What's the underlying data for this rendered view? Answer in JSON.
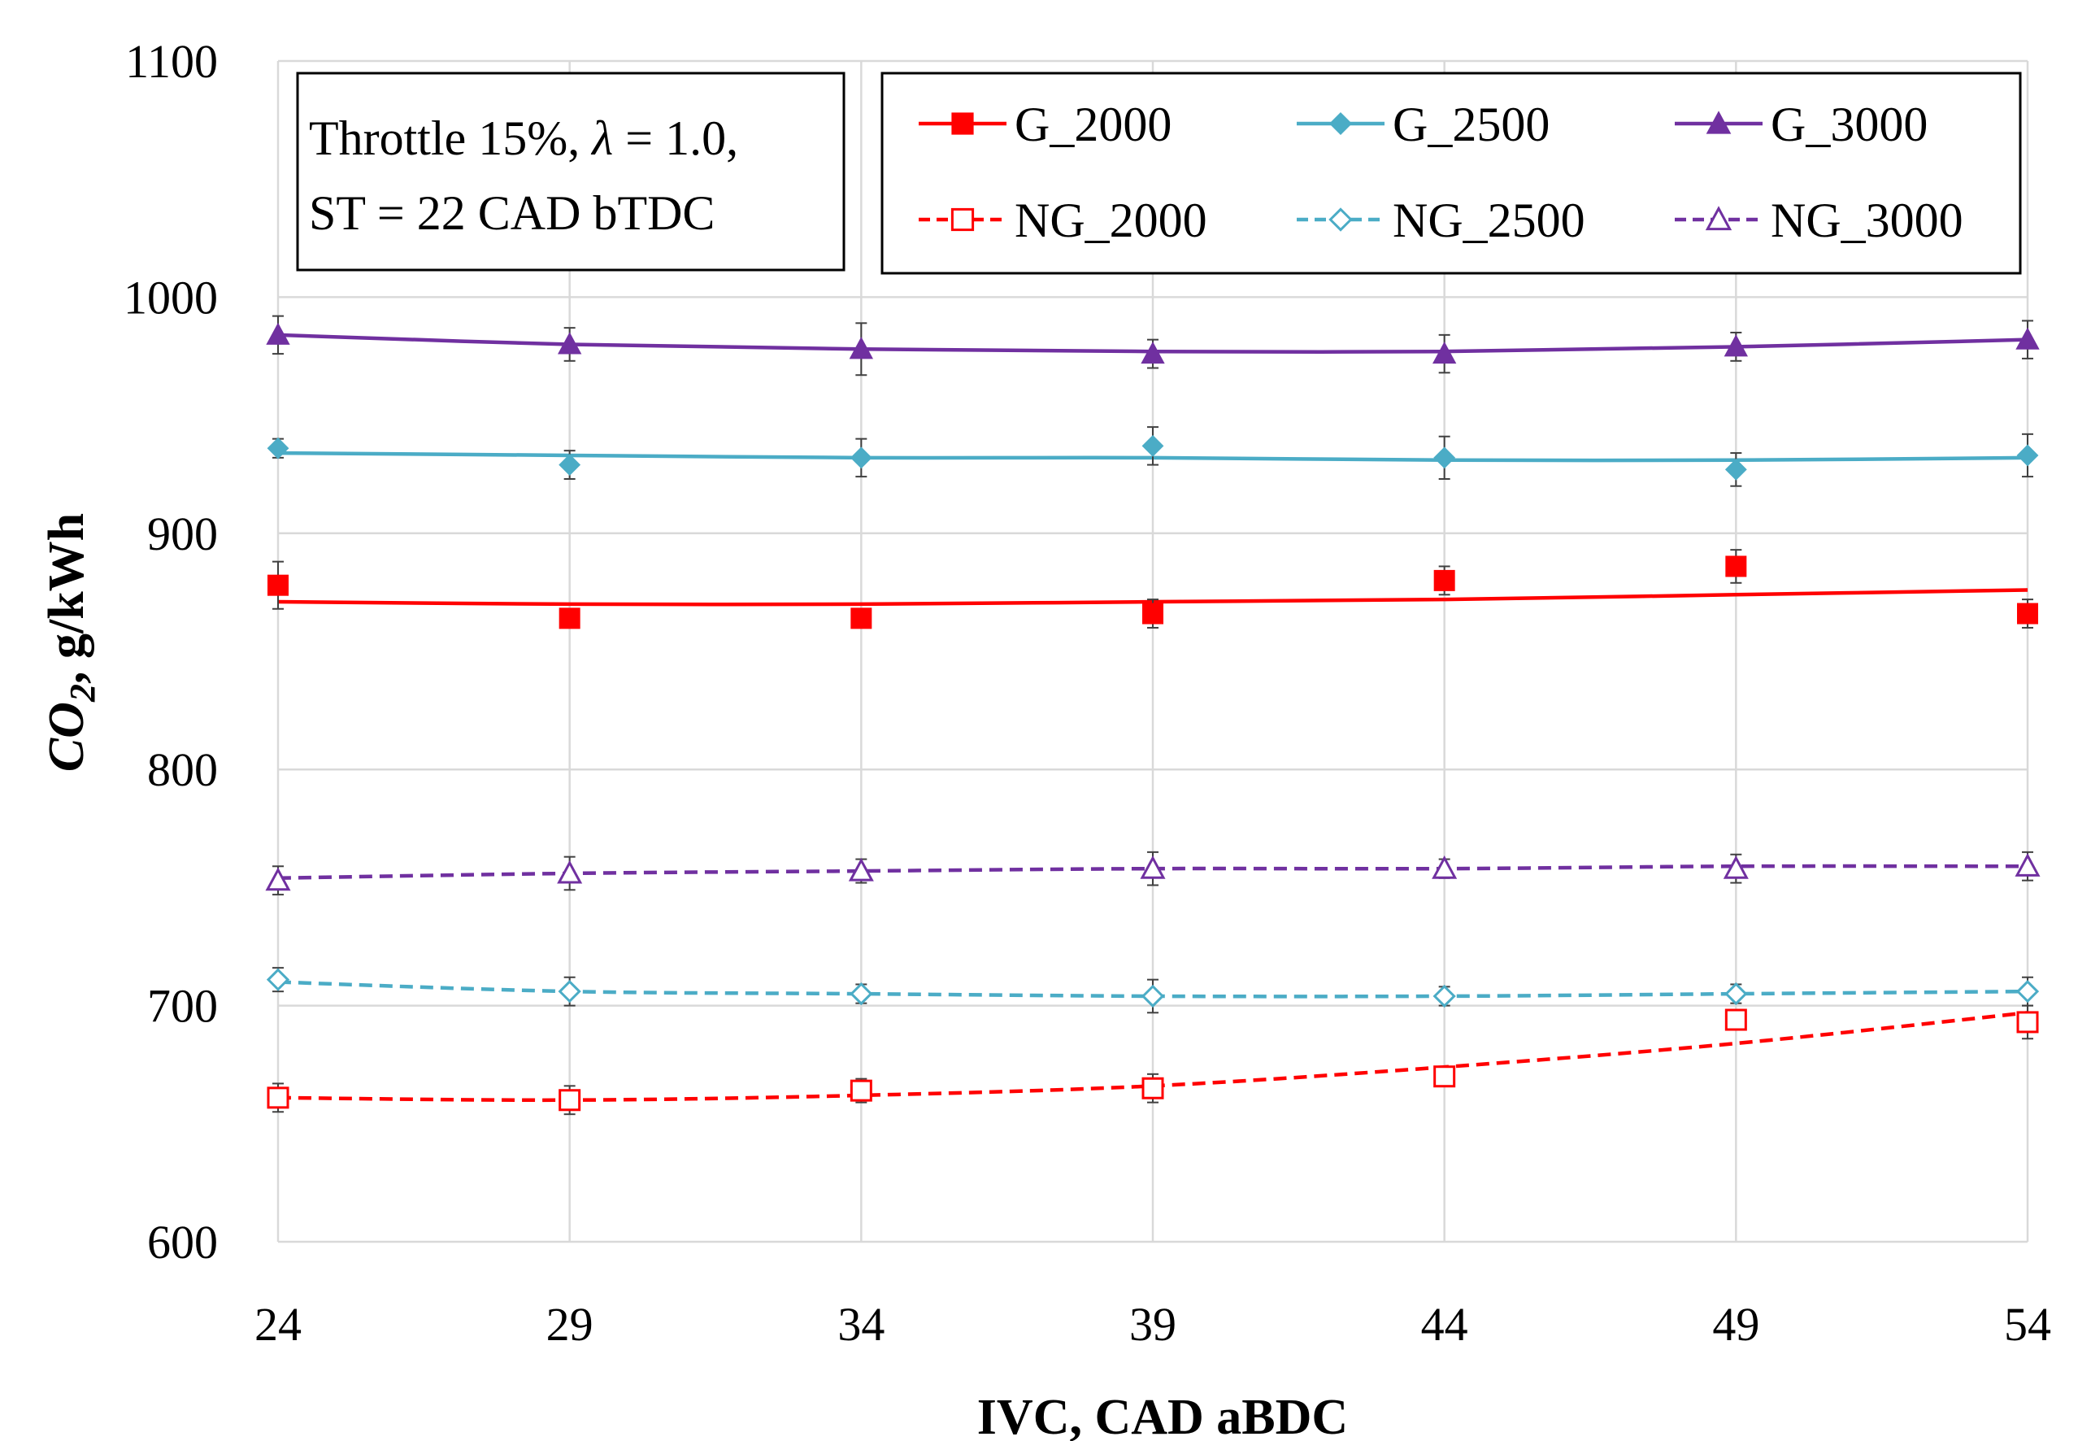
{
  "chart_data": {
    "type": "scatter",
    "title": "",
    "xlabel": "IVC, CAD aBDC",
    "ylabel_parts": {
      "base": "CO",
      "sub": "2",
      "italic_tail": ",",
      "rest": " g/kWh"
    },
    "xlim": [
      24,
      54
    ],
    "ylim": [
      600,
      1100
    ],
    "xticks": [
      24,
      29,
      34,
      39,
      44,
      49,
      54
    ],
    "yticks": [
      600,
      700,
      800,
      900,
      1000,
      1100
    ],
    "grid": true,
    "legend_position": "top-right",
    "note_lines": [
      {
        "before": "Throttle 15%, ",
        "symbol": "λ",
        "after": " = 1.0,"
      },
      {
        "before": "ST = 22 CAD bTDC",
        "symbol": "",
        "after": ""
      }
    ],
    "series": [
      {
        "name": "G_2000",
        "color": "#ff0000",
        "marker": "square",
        "filled": true,
        "dashed": false,
        "x": [
          24,
          29,
          34,
          39,
          44,
          49,
          54
        ],
        "values": [
          878,
          864,
          864,
          866,
          880,
          886,
          866
        ],
        "errors": [
          10,
          4,
          4,
          6,
          6,
          7,
          6
        ],
        "trend": [
          871,
          870,
          870,
          871,
          872,
          874,
          876
        ]
      },
      {
        "name": "G_2500",
        "color": "#4bacc6",
        "marker": "diamond",
        "filled": true,
        "dashed": false,
        "x": [
          24,
          29,
          34,
          39,
          44,
          49,
          54
        ],
        "values": [
          936,
          929,
          932,
          937,
          932,
          927,
          933
        ],
        "errors": [
          4,
          6,
          8,
          8,
          9,
          7,
          9
        ],
        "trend": [
          934,
          933,
          932,
          932,
          931,
          931,
          932
        ]
      },
      {
        "name": "G_3000",
        "color": "#7030a0",
        "marker": "triangle",
        "filled": true,
        "dashed": false,
        "x": [
          24,
          29,
          34,
          39,
          44,
          49,
          54
        ],
        "values": [
          984,
          980,
          978,
          976,
          976,
          979,
          982
        ],
        "errors": [
          8,
          7,
          11,
          6,
          8,
          6,
          8
        ],
        "trend": [
          984,
          980,
          978,
          977,
          977,
          979,
          982
        ]
      },
      {
        "name": "NG_2000",
        "color": "#ff0000",
        "marker": "square",
        "filled": false,
        "dashed": true,
        "x": [
          24,
          29,
          34,
          39,
          44,
          49,
          54
        ],
        "values": [
          661,
          660,
          664,
          665,
          670,
          694,
          693
        ],
        "errors": [
          6,
          6,
          5,
          6,
          4,
          4,
          7
        ],
        "trend": [
          661,
          660,
          662,
          666,
          674,
          684,
          697
        ]
      },
      {
        "name": "NG_2500",
        "color": "#4bacc6",
        "marker": "diamond",
        "filled": false,
        "dashed": true,
        "x": [
          24,
          29,
          34,
          39,
          44,
          49,
          54
        ],
        "values": [
          711,
          706,
          705,
          704,
          704,
          705,
          706
        ],
        "errors": [
          5,
          6,
          4,
          7,
          4,
          4,
          6
        ],
        "trend": [
          710,
          706,
          705,
          704,
          704,
          705,
          706
        ]
      },
      {
        "name": "NG_3000",
        "color": "#7030a0",
        "marker": "triangle",
        "filled": false,
        "dashed": true,
        "x": [
          24,
          29,
          34,
          39,
          44,
          49,
          54
        ],
        "values": [
          753,
          756,
          757,
          758,
          758,
          758,
          759
        ],
        "errors": [
          6,
          7,
          5,
          7,
          4,
          6,
          6
        ],
        "trend": [
          754,
          756,
          757,
          758,
          758,
          759,
          759
        ]
      }
    ]
  }
}
